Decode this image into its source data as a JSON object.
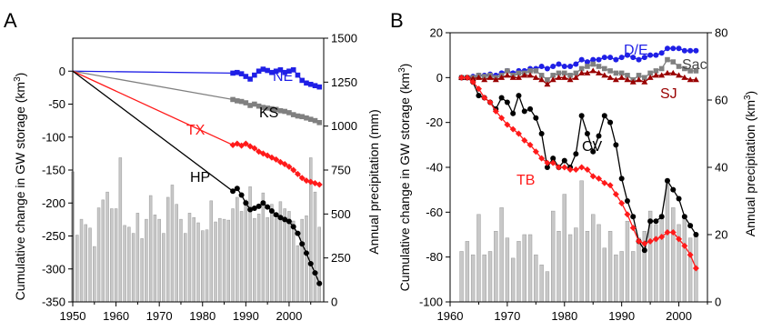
{
  "colors": {
    "blue": "#1f1fe6",
    "gray": "#808080",
    "red": "#ff1a1a",
    "black": "#000000",
    "darkred": "#990000",
    "bar": "#c8c8c8"
  },
  "chart_data": [
    {
      "type": "line",
      "panel_label": "A",
      "ylabel": "Cumulative change in GW storage (km3)",
      "y2label": "Annual precipitation (mm)",
      "xlim": [
        1950,
        2008
      ],
      "ylim": [
        -350,
        50
      ],
      "y2lim": [
        0,
        1500
      ],
      "xticks": [
        "1950",
        "1960",
        "1970",
        "1980",
        "1990",
        "2000"
      ],
      "yticks": [
        "0",
        "-50",
        "-100",
        "-150",
        "-200",
        "-250",
        "-300",
        "-350"
      ],
      "y2ticks": [
        "0",
        "250",
        "500",
        "750",
        "1000",
        "1250",
        "1500"
      ],
      "series": [
        {
          "name": "NE",
          "color_key": "blue",
          "marker": "square",
          "x": [
            1950,
            1987,
            1988,
            1989,
            1990,
            1991,
            1992,
            1993,
            1994,
            1995,
            1996,
            1997,
            1998,
            1999,
            2000,
            2001,
            2002,
            2003,
            2004,
            2005,
            2006,
            2007
          ],
          "y": [
            0,
            -3,
            -2,
            -4,
            -8,
            -12,
            -6,
            0,
            3,
            1,
            -2,
            0,
            2,
            -2,
            0,
            2,
            -6,
            -14,
            -18,
            -20,
            -22,
            -24
          ]
        },
        {
          "name": "KS",
          "color_key": "gray",
          "marker": "square",
          "x": [
            1950,
            1987,
            1988,
            1989,
            1990,
            1991,
            1992,
            1993,
            1994,
            1995,
            1996,
            1997,
            1998,
            1999,
            2000,
            2001,
            2002,
            2003,
            2004,
            2005,
            2006,
            2007
          ],
          "y": [
            0,
            -43,
            -45,
            -46,
            -48,
            -52,
            -50,
            -53,
            -55,
            -56,
            -57,
            -58,
            -60,
            -61,
            -63,
            -66,
            -68,
            -69,
            -71,
            -73,
            -75,
            -78
          ]
        },
        {
          "name": "TX",
          "color_key": "red",
          "marker": "diamond",
          "x": [
            1950,
            1987,
            1988,
            1989,
            1990,
            1991,
            1992,
            1993,
            1994,
            1995,
            1996,
            1997,
            1998,
            1999,
            2000,
            2001,
            2002,
            2003,
            2004,
            2005,
            2006,
            2007
          ],
          "y": [
            0,
            -112,
            -110,
            -113,
            -110,
            -114,
            -117,
            -122,
            -125,
            -128,
            -131,
            -134,
            -138,
            -141,
            -145,
            -150,
            -156,
            -162,
            -166,
            -168,
            -170,
            -172
          ]
        },
        {
          "name": "HP",
          "color_key": "black",
          "marker": "circle",
          "x": [
            1950,
            1987,
            1988,
            1989,
            1990,
            1991,
            1992,
            1993,
            1994,
            1995,
            1996,
            1997,
            1998,
            1999,
            2000,
            2001,
            2002,
            2003,
            2004,
            2005,
            2006,
            2007
          ],
          "y": [
            0,
            -182,
            -178,
            -188,
            -200,
            -210,
            -208,
            -205,
            -200,
            -206,
            -212,
            -218,
            -222,
            -225,
            -228,
            -236,
            -246,
            -262,
            -276,
            -292,
            -306,
            -322
          ]
        }
      ],
      "bars": {
        "x": [
          1950,
          1951,
          1952,
          1953,
          1954,
          1955,
          1956,
          1957,
          1958,
          1959,
          1960,
          1961,
          1962,
          1963,
          1964,
          1965,
          1966,
          1967,
          1968,
          1969,
          1970,
          1971,
          1972,
          1973,
          1974,
          1975,
          1976,
          1977,
          1978,
          1979,
          1980,
          1981,
          1982,
          1983,
          1984,
          1985,
          1986,
          1987,
          1988,
          1989,
          1990,
          1991,
          1992,
          1993,
          1994,
          1995,
          1996,
          1997,
          1998,
          1999,
          2000,
          2001,
          2002,
          2003,
          2004,
          2005,
          2006,
          2007
        ],
        "values": [
          740,
          380,
          470,
          440,
          420,
          315,
          535,
          580,
          625,
          530,
          530,
          820,
          435,
          425,
          390,
          505,
          360,
          470,
          605,
          495,
          470,
          390,
          595,
          665,
          555,
          470,
          390,
          505,
          480,
          450,
          405,
          410,
          575,
          455,
          475,
          470,
          465,
          530,
          595,
          515,
          580,
          655,
          475,
          500,
          620,
          480,
          555,
          475,
          570,
          530,
          515,
          460,
          320,
          470,
          490,
          820,
          625,
          425
        ]
      },
      "annotations": [
        "NE",
        "KS",
        "TX",
        "HP"
      ]
    },
    {
      "type": "line",
      "panel_label": "B",
      "ylabel": "Cumulative change in GW storage (km3)",
      "y2label": "Annual precipitation (km3)",
      "xlim": [
        1960,
        2005
      ],
      "ylim": [
        -100,
        20
      ],
      "y2lim": [
        0,
        80
      ],
      "xticks": [
        "1960",
        "1970",
        "1980",
        "1990",
        "2000"
      ],
      "yticks": [
        "20",
        "0",
        "-20",
        "-40",
        "-60",
        "-80",
        "-100"
      ],
      "y2ticks": [
        "0",
        "20",
        "40",
        "60",
        "80"
      ],
      "series": [
        {
          "name": "D/E",
          "color_key": "blue",
          "marker": "circle",
          "x": [
            1962,
            1963,
            1964,
            1965,
            1966,
            1967,
            1968,
            1969,
            1970,
            1971,
            1972,
            1973,
            1974,
            1975,
            1976,
            1977,
            1978,
            1979,
            1980,
            1981,
            1982,
            1983,
            1984,
            1985,
            1986,
            1987,
            1988,
            1989,
            1990,
            1991,
            1992,
            1993,
            1994,
            1995,
            1996,
            1997,
            1998,
            1999,
            2000,
            2001,
            2002,
            2003
          ],
          "y": [
            0,
            0,
            0.5,
            1,
            1,
            1.5,
            1,
            2,
            3,
            2,
            3,
            3,
            4,
            4,
            5,
            4,
            5,
            6,
            5,
            5,
            6,
            8,
            7,
            8,
            8,
            9,
            9,
            8,
            9,
            10,
            9,
            8,
            9,
            10,
            10,
            11,
            13,
            13,
            13,
            12,
            12,
            12
          ]
        },
        {
          "name": "Sac",
          "color_key": "gray",
          "marker": "square",
          "x": [
            1962,
            1963,
            1964,
            1965,
            1966,
            1967,
            1968,
            1969,
            1970,
            1971,
            1972,
            1973,
            1974,
            1975,
            1976,
            1977,
            1978,
            1979,
            1980,
            1981,
            1982,
            1983,
            1984,
            1985,
            1986,
            1987,
            1988,
            1989,
            1990,
            1991,
            1992,
            1993,
            1994,
            1995,
            1996,
            1997,
            1998,
            1999,
            2000,
            2001,
            2002,
            2003
          ],
          "y": [
            0,
            0,
            0,
            1,
            0.5,
            1,
            0,
            1,
            3,
            1,
            2,
            2,
            3,
            3,
            1,
            -1,
            1,
            2,
            2,
            1,
            2,
            4,
            5,
            6,
            5,
            4,
            3,
            2,
            2,
            1,
            -1,
            1,
            0,
            2,
            3,
            4,
            8,
            7,
            5,
            4,
            3,
            3
          ]
        },
        {
          "name": "SJ",
          "color_key": "darkred",
          "marker": "triangle",
          "x": [
            1962,
            1963,
            1964,
            1965,
            1966,
            1967,
            1968,
            1969,
            1970,
            1971,
            1972,
            1973,
            1974,
            1975,
            1976,
            1977,
            1978,
            1979,
            1980,
            1981,
            1982,
            1983,
            1984,
            1985,
            1986,
            1987,
            1988,
            1989,
            1990,
            1991,
            1992,
            1993,
            1994,
            1995,
            1996,
            1997,
            1998,
            1999,
            2000,
            2001,
            2002,
            2003
          ],
          "y": [
            0,
            0,
            -0.5,
            0,
            -1,
            0,
            -1,
            0,
            1,
            0,
            0,
            1,
            1,
            0,
            -1,
            -3,
            -1,
            0,
            0,
            -1,
            0,
            2,
            2,
            3,
            2,
            1,
            0,
            -1,
            0,
            -1,
            -2,
            -1,
            -2,
            0,
            1,
            1,
            2,
            2,
            1,
            0,
            -1,
            -1
          ]
        },
        {
          "name": "CV",
          "color_key": "black",
          "marker": "circle",
          "x": [
            1962,
            1963,
            1964,
            1965,
            1966,
            1967,
            1968,
            1969,
            1970,
            1971,
            1972,
            1973,
            1974,
            1975,
            1976,
            1977,
            1978,
            1979,
            1980,
            1981,
            1982,
            1983,
            1984,
            1985,
            1986,
            1987,
            1988,
            1989,
            1990,
            1991,
            1992,
            1993,
            1994,
            1995,
            1996,
            1997,
            1998,
            1999,
            2000,
            2001,
            2002,
            2003
          ],
          "y": [
            0,
            0,
            -2,
            -8,
            -9,
            -11,
            -14,
            -9,
            -11,
            -16,
            -8,
            -15,
            -14,
            -18,
            -25,
            -40,
            -36,
            -40,
            -37,
            -40,
            -34,
            -17,
            -25,
            -33,
            -26,
            -17,
            -20,
            -30,
            -45,
            -55,
            -62,
            -73,
            -77,
            -64,
            -64,
            -62,
            -46,
            -50,
            -54,
            -62,
            -66,
            -70
          ]
        },
        {
          "name": "TB",
          "color_key": "red",
          "marker": "diamond",
          "x": [
            1962,
            1963,
            1964,
            1965,
            1966,
            1967,
            1968,
            1969,
            1970,
            1971,
            1972,
            1973,
            1974,
            1975,
            1976,
            1977,
            1978,
            1979,
            1980,
            1981,
            1982,
            1983,
            1984,
            1985,
            1986,
            1987,
            1988,
            1989,
            1990,
            1991,
            1992,
            1993,
            1994,
            1995,
            1996,
            1997,
            1998,
            1999,
            2000,
            2001,
            2002,
            2003
          ],
          "y": [
            0,
            0,
            -2,
            -5,
            -9,
            -11,
            -15,
            -18,
            -21,
            -23,
            -25,
            -28,
            -30,
            -33,
            -36,
            -38,
            -38,
            -40,
            -40,
            -41,
            -41,
            -40,
            -41,
            -44,
            -45,
            -47,
            -48,
            -52,
            -56,
            -61,
            -67,
            -73,
            -74,
            -73,
            -72,
            -71,
            -69,
            -69,
            -72,
            -75,
            -79,
            -85
          ]
        }
      ],
      "bars": {
        "x": [
          1962,
          1963,
          1964,
          1965,
          1966,
          1967,
          1968,
          1969,
          1970,
          1971,
          1972,
          1973,
          1974,
          1975,
          1976,
          1977,
          1978,
          1979,
          1980,
          1981,
          1982,
          1983,
          1984,
          1985,
          1986,
          1987,
          1988,
          1989,
          1990,
          1991,
          1992,
          1993,
          1994,
          1995,
          1996,
          1997,
          1998,
          1999,
          2000,
          2001,
          2002,
          2003
        ],
        "values": [
          15,
          18,
          14,
          26,
          14,
          15,
          21,
          28,
          19,
          13,
          18,
          20,
          20,
          14,
          11,
          9,
          27,
          21,
          32,
          20,
          22,
          36,
          21,
          26,
          23,
          16,
          21,
          14,
          15,
          24,
          15,
          19,
          21,
          27,
          23,
          26,
          36,
          28,
          23,
          25,
          19,
          20
        ]
      },
      "annotations": [
        "D/E",
        "Sac",
        "SJ",
        "CV",
        "TB"
      ]
    }
  ]
}
